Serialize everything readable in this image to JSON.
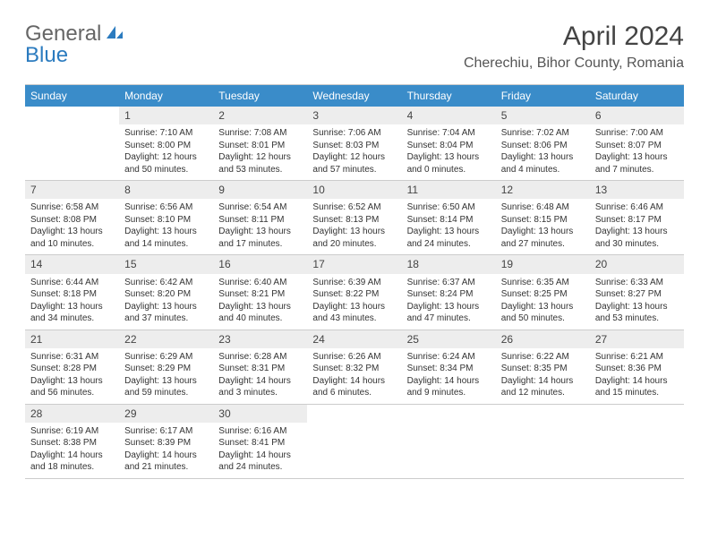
{
  "brand": {
    "part1": "General",
    "part2": "Blue"
  },
  "title": "April 2024",
  "location": "Cherechiu, Bihor County, Romania",
  "colors": {
    "header_bg": "#3a8cc9",
    "daynum_bg": "#ededed",
    "border": "#cccccc",
    "text": "#333333",
    "brand_blue": "#2b7bbf"
  },
  "weekdays": [
    "Sunday",
    "Monday",
    "Tuesday",
    "Wednesday",
    "Thursday",
    "Friday",
    "Saturday"
  ],
  "weeks": [
    [
      {
        "n": "",
        "empty": true
      },
      {
        "n": "1",
        "sr": "7:10 AM",
        "ss": "8:00 PM",
        "dl": "12 hours and 50 minutes."
      },
      {
        "n": "2",
        "sr": "7:08 AM",
        "ss": "8:01 PM",
        "dl": "12 hours and 53 minutes."
      },
      {
        "n": "3",
        "sr": "7:06 AM",
        "ss": "8:03 PM",
        "dl": "12 hours and 57 minutes."
      },
      {
        "n": "4",
        "sr": "7:04 AM",
        "ss": "8:04 PM",
        "dl": "13 hours and 0 minutes."
      },
      {
        "n": "5",
        "sr": "7:02 AM",
        "ss": "8:06 PM",
        "dl": "13 hours and 4 minutes."
      },
      {
        "n": "6",
        "sr": "7:00 AM",
        "ss": "8:07 PM",
        "dl": "13 hours and 7 minutes."
      }
    ],
    [
      {
        "n": "7",
        "sr": "6:58 AM",
        "ss": "8:08 PM",
        "dl": "13 hours and 10 minutes."
      },
      {
        "n": "8",
        "sr": "6:56 AM",
        "ss": "8:10 PM",
        "dl": "13 hours and 14 minutes."
      },
      {
        "n": "9",
        "sr": "6:54 AM",
        "ss": "8:11 PM",
        "dl": "13 hours and 17 minutes."
      },
      {
        "n": "10",
        "sr": "6:52 AM",
        "ss": "8:13 PM",
        "dl": "13 hours and 20 minutes."
      },
      {
        "n": "11",
        "sr": "6:50 AM",
        "ss": "8:14 PM",
        "dl": "13 hours and 24 minutes."
      },
      {
        "n": "12",
        "sr": "6:48 AM",
        "ss": "8:15 PM",
        "dl": "13 hours and 27 minutes."
      },
      {
        "n": "13",
        "sr": "6:46 AM",
        "ss": "8:17 PM",
        "dl": "13 hours and 30 minutes."
      }
    ],
    [
      {
        "n": "14",
        "sr": "6:44 AM",
        "ss": "8:18 PM",
        "dl": "13 hours and 34 minutes."
      },
      {
        "n": "15",
        "sr": "6:42 AM",
        "ss": "8:20 PM",
        "dl": "13 hours and 37 minutes."
      },
      {
        "n": "16",
        "sr": "6:40 AM",
        "ss": "8:21 PM",
        "dl": "13 hours and 40 minutes."
      },
      {
        "n": "17",
        "sr": "6:39 AM",
        "ss": "8:22 PM",
        "dl": "13 hours and 43 minutes."
      },
      {
        "n": "18",
        "sr": "6:37 AM",
        "ss": "8:24 PM",
        "dl": "13 hours and 47 minutes."
      },
      {
        "n": "19",
        "sr": "6:35 AM",
        "ss": "8:25 PM",
        "dl": "13 hours and 50 minutes."
      },
      {
        "n": "20",
        "sr": "6:33 AM",
        "ss": "8:27 PM",
        "dl": "13 hours and 53 minutes."
      }
    ],
    [
      {
        "n": "21",
        "sr": "6:31 AM",
        "ss": "8:28 PM",
        "dl": "13 hours and 56 minutes."
      },
      {
        "n": "22",
        "sr": "6:29 AM",
        "ss": "8:29 PM",
        "dl": "13 hours and 59 minutes."
      },
      {
        "n": "23",
        "sr": "6:28 AM",
        "ss": "8:31 PM",
        "dl": "14 hours and 3 minutes."
      },
      {
        "n": "24",
        "sr": "6:26 AM",
        "ss": "8:32 PM",
        "dl": "14 hours and 6 minutes."
      },
      {
        "n": "25",
        "sr": "6:24 AM",
        "ss": "8:34 PM",
        "dl": "14 hours and 9 minutes."
      },
      {
        "n": "26",
        "sr": "6:22 AM",
        "ss": "8:35 PM",
        "dl": "14 hours and 12 minutes."
      },
      {
        "n": "27",
        "sr": "6:21 AM",
        "ss": "8:36 PM",
        "dl": "14 hours and 15 minutes."
      }
    ],
    [
      {
        "n": "28",
        "sr": "6:19 AM",
        "ss": "8:38 PM",
        "dl": "14 hours and 18 minutes."
      },
      {
        "n": "29",
        "sr": "6:17 AM",
        "ss": "8:39 PM",
        "dl": "14 hours and 21 minutes."
      },
      {
        "n": "30",
        "sr": "6:16 AM",
        "ss": "8:41 PM",
        "dl": "14 hours and 24 minutes."
      },
      {
        "n": "",
        "empty": true
      },
      {
        "n": "",
        "empty": true
      },
      {
        "n": "",
        "empty": true
      },
      {
        "n": "",
        "empty": true
      }
    ]
  ],
  "labels": {
    "sunrise": "Sunrise:",
    "sunset": "Sunset:",
    "daylight": "Daylight:"
  }
}
